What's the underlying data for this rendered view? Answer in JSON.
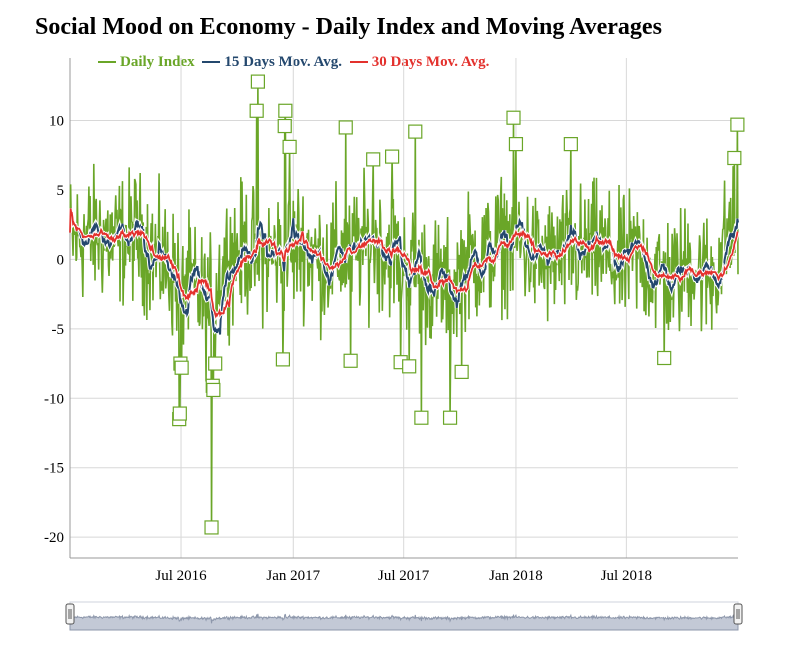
{
  "chart_data": {
    "type": "line",
    "title": "Social Mood on Economy - Daily Index and Moving Averages",
    "xlabel": "",
    "ylabel": "",
    "x_range": [
      "2016-01-01",
      "2018-12-31"
    ],
    "ylim": [
      -21.5,
      14.5
    ],
    "y_ticks": [
      10,
      5,
      0,
      -5,
      -10,
      -15,
      -20
    ],
    "y_tick_labels": [
      "10",
      "5",
      "0",
      "-5",
      "-10",
      "-15",
      "-20"
    ],
    "x_ticks": [
      {
        "date": "2016-07-01",
        "label": "Jul 2016"
      },
      {
        "date": "2017-01-01",
        "label": "Jan 2017"
      },
      {
        "date": "2017-07-01",
        "label": "Jul 2017"
      },
      {
        "date": "2018-01-01",
        "label": "Jan 2018"
      },
      {
        "date": "2018-07-01",
        "label": "Jul 2018"
      }
    ],
    "grid": true,
    "legend_position": "top",
    "series": [
      {
        "name": "Daily Index",
        "color": "#6aa628"
      },
      {
        "name": "15 Days Mov. Avg.",
        "color": "#24486e"
      },
      {
        "name": "30 Days Mov. Avg.",
        "color": "#e3312d"
      }
    ],
    "daily_index_monthly_average": {
      "months": [
        "2016-01",
        "2016-02",
        "2016-03",
        "2016-04",
        "2016-05",
        "2016-06",
        "2016-07",
        "2016-08",
        "2016-09",
        "2016-10",
        "2016-11",
        "2016-12",
        "2017-01",
        "2017-02",
        "2017-03",
        "2017-04",
        "2017-05",
        "2017-06",
        "2017-07",
        "2017-08",
        "2017-09",
        "2017-10",
        "2017-11",
        "2017-12",
        "2018-01",
        "2018-02",
        "2018-03",
        "2018-04",
        "2018-05",
        "2018-06",
        "2018-07",
        "2018-08",
        "2018-09",
        "2018-10",
        "2018-11",
        "2018-12"
      ],
      "values": [
        1.5,
        1.8,
        1.2,
        1.8,
        0.5,
        -1.0,
        -2.0,
        -3.5,
        0.3,
        0.8,
        0.2,
        0.5,
        1.2,
        -0.3,
        0.3,
        0.8,
        1.2,
        0.5,
        -0.8,
        -1.5,
        -2.2,
        0.0,
        0.3,
        1.5,
        0.8,
        -0.3,
        0.2,
        0.5,
        0.8,
        -0.5,
        0.3,
        -1.0,
        -1.5,
        -0.2,
        -1.5,
        1.8
      ]
    },
    "flagged_points": [
      {
        "date": "2016-06-28",
        "value": -11.5
      },
      {
        "date": "2016-06-29",
        "value": -11.1
      },
      {
        "date": "2016-06-30",
        "value": -7.5
      },
      {
        "date": "2016-07-02",
        "value": -7.8
      },
      {
        "date": "2016-08-20",
        "value": -19.3
      },
      {
        "date": "2016-08-22",
        "value": -9.1
      },
      {
        "date": "2016-08-23",
        "value": -9.4
      },
      {
        "date": "2016-08-26",
        "value": -7.5
      },
      {
        "date": "2016-11-04",
        "value": 12.8
      },
      {
        "date": "2016-11-02",
        "value": 10.7
      },
      {
        "date": "2016-12-15",
        "value": -7.2
      },
      {
        "date": "2016-12-19",
        "value": 10.7
      },
      {
        "date": "2016-12-18",
        "value": 9.6
      },
      {
        "date": "2016-12-26",
        "value": 8.1
      },
      {
        "date": "2017-03-28",
        "value": 9.5
      },
      {
        "date": "2017-04-05",
        "value": -7.3
      },
      {
        "date": "2017-05-12",
        "value": 7.2
      },
      {
        "date": "2017-06-12",
        "value": 7.4
      },
      {
        "date": "2017-06-26",
        "value": -7.4
      },
      {
        "date": "2017-07-10",
        "value": -7.7
      },
      {
        "date": "2017-07-20",
        "value": 9.2
      },
      {
        "date": "2017-07-30",
        "value": -11.4
      },
      {
        "date": "2017-09-15",
        "value": -11.4
      },
      {
        "date": "2017-10-04",
        "value": -8.1
      },
      {
        "date": "2017-12-28",
        "value": 10.2
      },
      {
        "date": "2018-01-01",
        "value": 8.3
      },
      {
        "date": "2018-04-01",
        "value": 8.3
      },
      {
        "date": "2018-09-01",
        "value": -7.1
      },
      {
        "date": "2018-12-25",
        "value": 7.3
      },
      {
        "date": "2018-12-30",
        "value": 9.7
      }
    ],
    "navigator": {
      "type": "area",
      "range": [
        "2016-01-01",
        "2018-12-31"
      ]
    }
  }
}
